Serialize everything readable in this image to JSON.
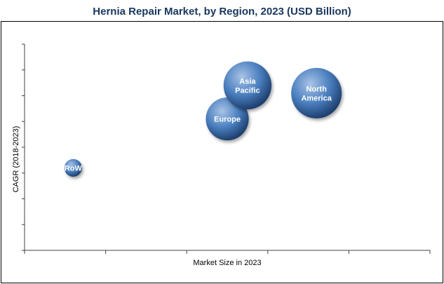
{
  "chart_data": {
    "type": "bubble",
    "title": "Hernia Repair Market, by Region, 2023 (USD Billion)",
    "xlabel": "Market Size in 2023",
    "ylabel": "CAGR (2018-2023)",
    "axis_tick_labels": false,
    "grid": false,
    "legend": "none",
    "series": [
      {
        "label": "RoW",
        "x": 0.6,
        "y": 3.2,
        "size": 0.35
      },
      {
        "label": "Europe",
        "x": 2.5,
        "y": 5.1,
        "size": 0.85
      },
      {
        "label": "Asia Pacific",
        "x": 2.75,
        "y": 6.4,
        "size": 0.95
      },
      {
        "label": "North America",
        "x": 3.6,
        "y": 6.1,
        "size": 1.0
      }
    ],
    "xlim": [
      0,
      5
    ],
    "ylim": [
      0,
      8
    ],
    "x_tick_count": 5,
    "y_tick_count": 8,
    "colors": {
      "bubble_light": "#A9C3E6",
      "bubble_mid": "#4A7FBF",
      "bubble_dark": "#1C3D6B",
      "axis": "#404040",
      "frame": "#000000",
      "title": "#17375E"
    }
  }
}
